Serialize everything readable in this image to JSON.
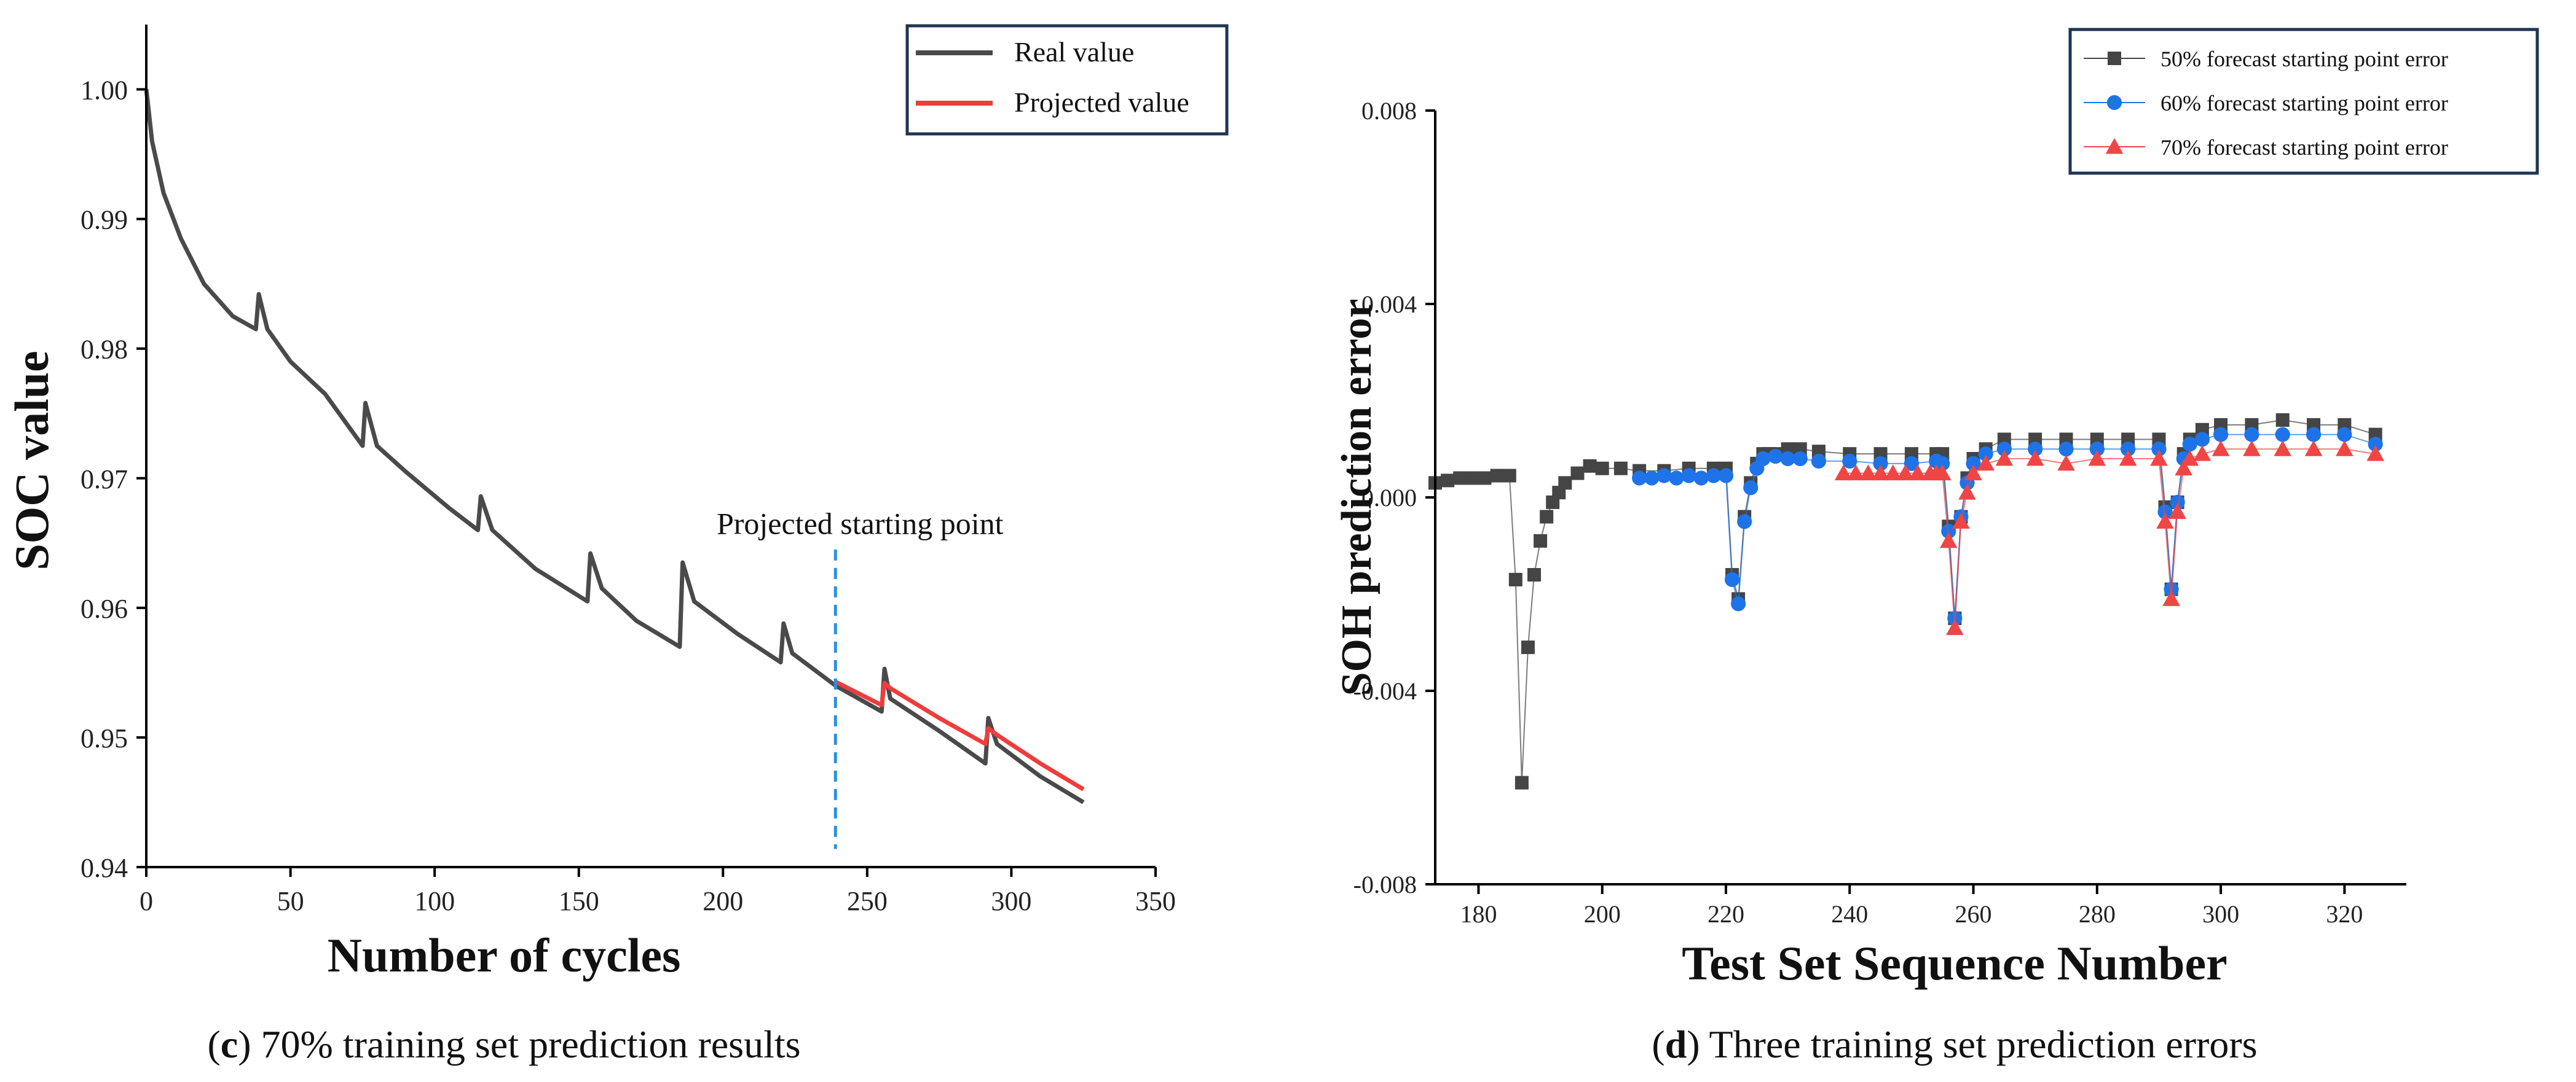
{
  "chart_data": [
    {
      "type": "line",
      "panel_id": "c",
      "caption_bold": "c",
      "caption_text": " 70% training set prediction results",
      "xlabel": "Number of cycles",
      "ylabel": "SOC value",
      "xlim": [
        0,
        350
      ],
      "ylim": [
        0.94,
        1.005
      ],
      "xticks": [
        0,
        50,
        100,
        150,
        200,
        250,
        300,
        350
      ],
      "yticks": [
        0.94,
        0.95,
        0.96,
        0.97,
        0.98,
        0.99,
        1.0
      ],
      "ytick_labels": [
        "0.94",
        "0.95",
        "0.96",
        "0.97",
        "0.98",
        "0.99",
        "1.00"
      ],
      "legend": [
        "Real value",
        "Projected value"
      ],
      "annotation": {
        "text": "Projected starting point",
        "x": 239
      },
      "colors": {
        "real": "#4a4a4a",
        "projected": "#f03c3c",
        "marker_line": "#2b8fe0",
        "legend_border": "#1f3552"
      },
      "series": [
        {
          "name": "Real value",
          "x": [
            0,
            2,
            6,
            12,
            20,
            30,
            38,
            39,
            42,
            50,
            62,
            75,
            76,
            80,
            90,
            105,
            115,
            116,
            120,
            135,
            153,
            154,
            158,
            170,
            185,
            186,
            190,
            205,
            220,
            221,
            224,
            239,
            255,
            256,
            258,
            275,
            291,
            292,
            295,
            310,
            325
          ],
          "values": [
            1.0,
            0.996,
            0.992,
            0.9885,
            0.985,
            0.9825,
            0.9815,
            0.9842,
            0.9815,
            0.979,
            0.9765,
            0.9725,
            0.9758,
            0.9725,
            0.9705,
            0.9677,
            0.966,
            0.9686,
            0.966,
            0.963,
            0.9605,
            0.9642,
            0.9615,
            0.959,
            0.957,
            0.9635,
            0.9605,
            0.958,
            0.9558,
            0.9588,
            0.9565,
            0.954,
            0.952,
            0.9553,
            0.953,
            0.9505,
            0.948,
            0.9515,
            0.9495,
            0.947,
            0.945
          ]
        },
        {
          "name": "Projected value",
          "x": [
            239,
            255,
            256,
            258,
            275,
            291,
            292,
            295,
            310,
            325
          ],
          "values": [
            0.9543,
            0.9525,
            0.9542,
            0.9538,
            0.9515,
            0.9495,
            0.9507,
            0.9502,
            0.948,
            0.946
          ]
        }
      ]
    },
    {
      "type": "scatter",
      "panel_id": "d",
      "caption_bold": "d",
      "caption_text": " Three training set prediction errors",
      "xlabel": "Test Set Sequence Number",
      "ylabel": "SOH prediction error",
      "xlim": [
        173,
        330
      ],
      "ylim": [
        -0.008,
        0.008
      ],
      "xticks": [
        180,
        200,
        220,
        240,
        260,
        280,
        300,
        320
      ],
      "yticks": [
        -0.008,
        -0.004,
        0.0,
        0.004,
        0.008
      ],
      "ytick_labels": [
        "-0.008",
        "-0.004",
        "0.000",
        "0.004",
        "0.008"
      ],
      "legend": [
        "50% forecast starting point error",
        "60% forecast starting point error",
        "70% forecast starting point error"
      ],
      "colors": {
        "s50": "#454545",
        "s60": "#1e73e8",
        "s70": "#f04545",
        "legend_border": "#1f3552"
      },
      "series": [
        {
          "name": "50% forecast starting point error",
          "marker": "square",
          "x": [
            173,
            175,
            177,
            179,
            181,
            183,
            185,
            186,
            187,
            188,
            189,
            190,
            191,
            192,
            193,
            194,
            196,
            198,
            200,
            203,
            206,
            210,
            214,
            218,
            220,
            221,
            222,
            223,
            224,
            225,
            226,
            227,
            228,
            230,
            232,
            235,
            240,
            245,
            250,
            254,
            255,
            256,
            257,
            258,
            259,
            260,
            262,
            265,
            270,
            275,
            280,
            285,
            290,
            291,
            292,
            293,
            294,
            295,
            297,
            300,
            305,
            310,
            315,
            320,
            325
          ],
          "values": [
            0.0003,
            0.00035,
            0.0004,
            0.0004,
            0.0004,
            0.00045,
            0.00045,
            -0.0017,
            -0.0059,
            -0.0031,
            -0.0016,
            -0.0009,
            -0.0004,
            -0.0001,
            0.0001,
            0.0003,
            0.0005,
            0.00065,
            0.0006,
            0.0006,
            0.00055,
            0.00055,
            0.0006,
            0.0006,
            0.0006,
            -0.0016,
            -0.0021,
            -0.0004,
            0.0003,
            0.0007,
            0.0009,
            0.0009,
            0.0009,
            0.001,
            0.001,
            0.00095,
            0.0009,
            0.0009,
            0.0009,
            0.0009,
            0.0009,
            -0.0006,
            -0.0025,
            -0.0004,
            0.0004,
            0.0008,
            0.001,
            0.0012,
            0.0012,
            0.0012,
            0.0012,
            0.0012,
            0.0012,
            -0.0002,
            -0.0019,
            -0.0001,
            0.0009,
            0.0012,
            0.0014,
            0.0015,
            0.0015,
            0.0016,
            0.0015,
            0.0015,
            0.0013
          ]
        },
        {
          "name": "60% forecast starting point error",
          "marker": "circle",
          "x": [
            206,
            208,
            210,
            212,
            214,
            216,
            218,
            220,
            221,
            222,
            223,
            224,
            225,
            226,
            228,
            230,
            232,
            235,
            240,
            245,
            250,
            254,
            255,
            256,
            257,
            258,
            259,
            260,
            262,
            265,
            270,
            275,
            280,
            285,
            290,
            291,
            292,
            293,
            294,
            295,
            297,
            300,
            305,
            310,
            315,
            320,
            325
          ],
          "values": [
            0.0004,
            0.0004,
            0.00045,
            0.0004,
            0.00045,
            0.0004,
            0.00045,
            0.00045,
            -0.0017,
            -0.0022,
            -0.0005,
            0.0002,
            0.0006,
            0.0008,
            0.00085,
            0.0008,
            0.0008,
            0.00075,
            0.00075,
            0.0007,
            0.0007,
            0.00075,
            0.0007,
            -0.0007,
            -0.0025,
            -0.0004,
            0.0003,
            0.0007,
            0.0009,
            0.001,
            0.001,
            0.001,
            0.001,
            0.001,
            0.001,
            -0.0003,
            -0.0019,
            -0.0001,
            0.0008,
            0.0011,
            0.0012,
            0.0013,
            0.0013,
            0.0013,
            0.0013,
            0.0013,
            0.0011
          ]
        },
        {
          "name": "70% forecast starting point error",
          "marker": "triangle",
          "x": [
            239,
            241,
            243,
            245,
            247,
            249,
            251,
            253,
            254,
            255,
            256,
            257,
            258,
            259,
            260,
            262,
            265,
            270,
            275,
            280,
            285,
            290,
            291,
            292,
            293,
            294,
            295,
            297,
            300,
            305,
            310,
            315,
            320,
            325
          ],
          "values": [
            0.0005,
            0.0005,
            0.0005,
            0.0005,
            0.0005,
            0.0005,
            0.0005,
            0.0005,
            0.0005,
            0.0005,
            -0.0009,
            -0.0027,
            -0.0005,
            0.0001,
            0.0005,
            0.0007,
            0.0008,
            0.0008,
            0.0007,
            0.0008,
            0.0008,
            0.0008,
            -0.0005,
            -0.0021,
            -0.0003,
            0.0006,
            0.0008,
            0.0009,
            0.001,
            0.001,
            0.001,
            0.001,
            0.001,
            0.0009
          ]
        }
      ]
    }
  ]
}
